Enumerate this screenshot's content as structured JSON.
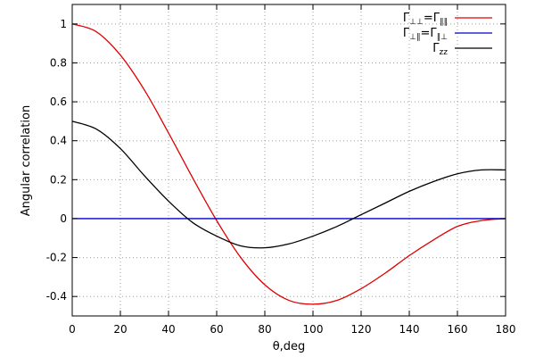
{
  "chart_data": {
    "type": "line",
    "title": "",
    "xlabel": "θ,deg",
    "ylabel": "Angular correlation",
    "xlim": [
      0,
      180
    ],
    "ylim": [
      -0.5,
      1.1
    ],
    "xticks": [
      0,
      20,
      40,
      60,
      80,
      100,
      120,
      140,
      160,
      180
    ],
    "xtick_labels": [
      "0",
      "20",
      "40",
      "60",
      "80",
      "100",
      "120",
      "140",
      "160",
      "180"
    ],
    "yticks": [
      -0.4,
      -0.2,
      0,
      0.2,
      0.4,
      0.6,
      0.8,
      1
    ],
    "ytick_labels": [
      "-0.4",
      "-0.2",
      "0",
      "0.2",
      "0.4",
      "0.6",
      "0.8",
      "1"
    ],
    "grid": true,
    "legend_position": "top-right",
    "x": [
      0,
      10,
      20,
      30,
      40,
      50,
      60,
      70,
      80,
      90,
      100,
      110,
      120,
      130,
      140,
      150,
      160,
      170,
      180
    ],
    "series": [
      {
        "legend": {
          "base": "Γ",
          "sub": "⊥⊥",
          "eq": "=Γ",
          "sub2": "∥∥"
        },
        "color": "#e00000",
        "values": [
          1.0,
          0.96,
          0.84,
          0.66,
          0.44,
          0.21,
          -0.01,
          -0.2,
          -0.34,
          -0.42,
          -0.44,
          -0.42,
          -0.36,
          -0.28,
          -0.19,
          -0.11,
          -0.04,
          -0.01,
          0.0
        ]
      },
      {
        "legend": {
          "base": "Γ",
          "sub": "⊥∥",
          "eq": "=Γ",
          "sub2": "∥⊥"
        },
        "color": "#0000cc",
        "values": [
          0,
          0,
          0,
          0,
          0,
          0,
          0,
          0,
          0,
          0,
          0,
          0,
          0,
          0,
          0,
          0,
          0,
          0,
          0
        ]
      },
      {
        "legend": {
          "base": "Γ",
          "sub": "zz",
          "eq": "",
          "sub2": ""
        },
        "color": "#000000",
        "values": [
          0.5,
          0.46,
          0.36,
          0.22,
          0.09,
          -0.02,
          -0.09,
          -0.14,
          -0.15,
          -0.13,
          -0.09,
          -0.04,
          0.02,
          0.08,
          0.14,
          0.19,
          0.23,
          0.25,
          0.25
        ]
      }
    ]
  }
}
